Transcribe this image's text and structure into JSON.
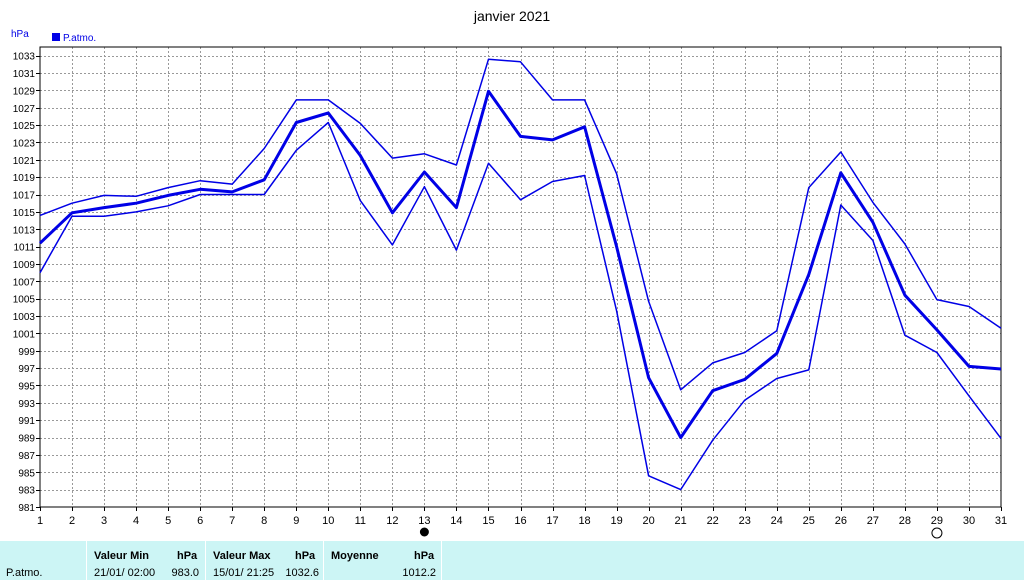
{
  "chart_data": {
    "type": "line",
    "title": "janvier 2021",
    "ylabel": "hPa",
    "legend": "P.atmo.",
    "legend_position": "top-left",
    "ylim": [
      981,
      1034
    ],
    "y_ticks": [
      981,
      983,
      985,
      987,
      989,
      991,
      993,
      995,
      997,
      999,
      1001,
      1003,
      1005,
      1007,
      1009,
      1011,
      1013,
      1015,
      1017,
      1019,
      1021,
      1023,
      1025,
      1027,
      1029,
      1031,
      1033
    ],
    "x": [
      1,
      2,
      3,
      4,
      5,
      6,
      7,
      8,
      9,
      10,
      11,
      12,
      13,
      14,
      15,
      16,
      17,
      18,
      19,
      20,
      21,
      22,
      23,
      24,
      25,
      26,
      27,
      28,
      29,
      30,
      31
    ],
    "grid": true,
    "series": [
      {
        "role": "max",
        "values": [
          1014.6,
          1016.0,
          1016.9,
          1016.8,
          1017.8,
          1018.6,
          1018.2,
          1022.3,
          1027.9,
          1027.9,
          1025.2,
          1021.2,
          1021.7,
          1020.4,
          1032.6,
          1032.3,
          1027.9,
          1027.9,
          1019.4,
          1004.7,
          994.5,
          997.6,
          998.8,
          1001.3,
          1017.8,
          1021.9,
          1016.1,
          1011.3,
          1004.9,
          1004.1,
          1001.6
        ]
      },
      {
        "role": "mean",
        "values": [
          1011.4,
          1014.9,
          1015.5,
          1016.0,
          1016.9,
          1017.6,
          1017.3,
          1018.7,
          1025.3,
          1026.4,
          1021.5,
          1014.9,
          1019.6,
          1015.5,
          1028.9,
          1023.7,
          1023.3,
          1024.8,
          1011.0,
          995.9,
          989.0,
          994.4,
          995.7,
          998.7,
          1007.8,
          1019.5,
          1013.8,
          1005.4,
          1001.4,
          997.2,
          996.9
        ]
      },
      {
        "role": "min",
        "values": [
          1008.0,
          1014.5,
          1014.5,
          1015.0,
          1015.7,
          1017.0,
          1017.0,
          1017.0,
          1022.1,
          1025.3,
          1016.3,
          1011.2,
          1017.9,
          1010.6,
          1020.6,
          1016.4,
          1018.5,
          1019.2,
          1003.6,
          984.6,
          983.0,
          988.7,
          993.3,
          995.8,
          996.8,
          1015.8,
          1011.7,
          1000.8,
          998.8,
          993.8,
          988.9
        ]
      }
    ],
    "markers": [
      {
        "label": "new-moon",
        "x": 13
      },
      {
        "label": "full-moon",
        "x": 29
      }
    ],
    "colors": {
      "line": "#0000e6",
      "grid": "#999999",
      "stats_bg": "#ccf5f5"
    }
  },
  "stats": {
    "row_label": "P.atmo.",
    "min": {
      "header": "Valeur Min",
      "unit": "hPa",
      "when": "21/01/  02:00",
      "value": "983.0"
    },
    "max": {
      "header": "Valeur Max",
      "unit": "hPa",
      "when": "15/01/  21:25",
      "value": "1032.6"
    },
    "mean": {
      "header": "Moyenne",
      "unit": "hPa",
      "value": "1012.2"
    }
  }
}
